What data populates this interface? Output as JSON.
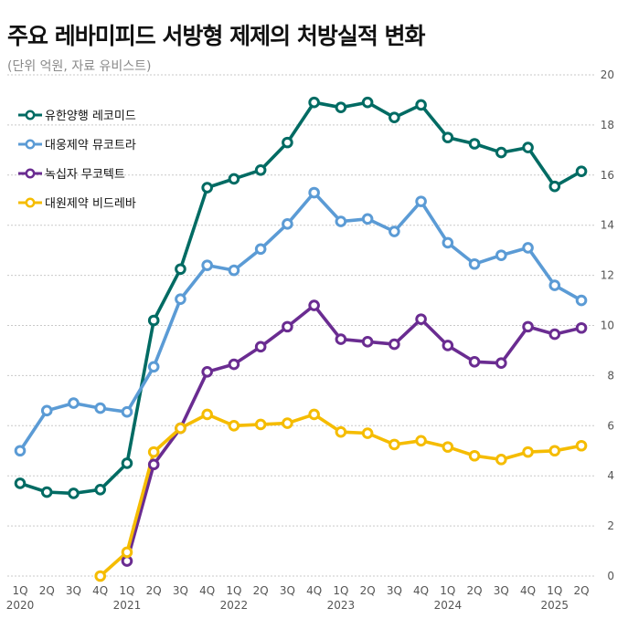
{
  "title": "주요 레바미피드 서방형 제제의 처방실적 변화",
  "subtitle": "(단위 억원, 자료 유비스트)",
  "chart_data": {
    "type": "line",
    "categories": [
      "1Q",
      "2Q",
      "3Q",
      "4Q",
      "1Q",
      "2Q",
      "3Q",
      "4Q",
      "1Q",
      "2Q",
      "3Q",
      "4Q",
      "1Q",
      "2Q",
      "3Q",
      "4Q",
      "1Q",
      "2Q",
      "3Q",
      "4Q",
      "1Q",
      "2Q"
    ],
    "years": [
      {
        "label": "2020",
        "index": 0
      },
      {
        "label": "2021",
        "index": 4
      },
      {
        "label": "2022",
        "index": 8
      },
      {
        "label": "2023",
        "index": 12
      },
      {
        "label": "2024",
        "index": 16
      },
      {
        "label": "2025",
        "index": 20
      }
    ],
    "ylim": [
      0,
      20
    ],
    "yticks": [
      0,
      2,
      4,
      6,
      8,
      10,
      12,
      14,
      16,
      18,
      20
    ],
    "grid": true,
    "legend_position": "top-left",
    "series": [
      {
        "name": "유한양행 레코미드",
        "color": "#006b63",
        "values": [
          null,
          null,
          null,
          null,
          null,
          null,
          null,
          null,
          null,
          null,
          null,
          null,
          null,
          null,
          null,
          null,
          null,
          null,
          null,
          null,
          null,
          null
        ],
        "points": [
          [
            0,
            3.7
          ],
          [
            1,
            3.35
          ],
          [
            2,
            3.3
          ],
          [
            3,
            3.45
          ],
          [
            4,
            4.5
          ],
          [
            5,
            10.2
          ],
          [
            6,
            12.25
          ],
          [
            7,
            15.5
          ],
          [
            8,
            15.85
          ],
          [
            9,
            16.2
          ],
          [
            10,
            17.3
          ],
          [
            11,
            18.9
          ],
          [
            12,
            18.7
          ],
          [
            13,
            18.9
          ],
          [
            14,
            18.3
          ],
          [
            15,
            18.8
          ],
          [
            16,
            17.5
          ],
          [
            17,
            17.25
          ],
          [
            18,
            16.9
          ],
          [
            19,
            17.1
          ],
          [
            20,
            15.55
          ],
          [
            21,
            16.15
          ]
        ]
      },
      {
        "name": "대웅제약 뮤코트라",
        "color": "#5b9bd5",
        "points": [
          [
            0,
            5.0
          ],
          [
            1,
            6.6
          ],
          [
            2,
            6.9
          ],
          [
            3,
            6.7
          ],
          [
            4,
            6.55
          ],
          [
            5,
            8.35
          ],
          [
            6,
            11.05
          ],
          [
            7,
            12.4
          ],
          [
            8,
            12.2
          ],
          [
            9,
            13.05
          ],
          [
            10,
            14.05
          ],
          [
            11,
            15.3
          ],
          [
            12,
            14.15
          ],
          [
            13,
            14.25
          ],
          [
            14,
            13.75
          ],
          [
            15,
            14.95
          ],
          [
            16,
            13.3
          ],
          [
            17,
            12.45
          ],
          [
            18,
            12.8
          ],
          [
            19,
            13.1
          ],
          [
            20,
            11.6
          ],
          [
            21,
            11.0
          ]
        ]
      },
      {
        "name": "녹십자 무코텍트",
        "color": "#6a2c91",
        "points": [
          [
            4,
            0.6
          ],
          [
            5,
            4.45
          ],
          [
            6,
            5.9
          ],
          [
            7,
            8.15
          ],
          [
            8,
            8.45
          ],
          [
            9,
            9.15
          ],
          [
            10,
            9.95
          ],
          [
            11,
            10.8
          ],
          [
            12,
            9.45
          ],
          [
            13,
            9.35
          ],
          [
            14,
            9.25
          ],
          [
            15,
            10.25
          ],
          [
            16,
            9.2
          ],
          [
            17,
            8.55
          ],
          [
            18,
            8.5
          ],
          [
            19,
            9.95
          ],
          [
            20,
            9.65
          ],
          [
            21,
            9.9
          ]
        ]
      },
      {
        "name": "대원제약 비드레바",
        "color": "#f5bc00",
        "points": [
          [
            3,
            0.0
          ],
          [
            4,
            0.95
          ],
          [
            5,
            4.95
          ],
          [
            6,
            5.9
          ],
          [
            7,
            6.45
          ],
          [
            8,
            6.0
          ],
          [
            9,
            6.05
          ],
          [
            10,
            6.1
          ],
          [
            11,
            6.45
          ],
          [
            12,
            5.75
          ],
          [
            13,
            5.7
          ],
          [
            14,
            5.25
          ],
          [
            15,
            5.4
          ],
          [
            16,
            5.15
          ],
          [
            17,
            4.8
          ],
          [
            18,
            4.65
          ],
          [
            19,
            4.95
          ],
          [
            20,
            5.0
          ],
          [
            21,
            5.2
          ]
        ]
      }
    ]
  }
}
